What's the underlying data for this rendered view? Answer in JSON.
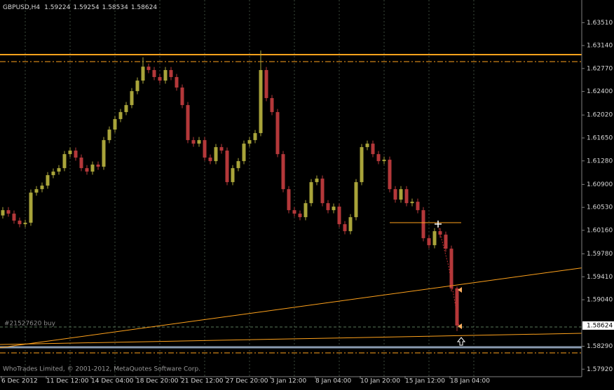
{
  "chart_data": {
    "type": "candlestick",
    "title": "GBPUSD,H4",
    "copyright": "WhoTrades Limited, © 2001-2012, MetaQuotes Software Corp.",
    "categories": [
      "6 Dec 2012",
      null,
      null,
      null,
      null,
      null,
      null,
      null,
      "11 Dec 12:00",
      null,
      null,
      null,
      null,
      null,
      null,
      null,
      "14 Dec 04:00",
      null,
      null,
      null,
      null,
      null,
      null,
      null,
      "18 Dec 20:00",
      null,
      null,
      null,
      null,
      null,
      null,
      null,
      "21 Dec 12:00",
      null,
      null,
      null,
      null,
      null,
      null,
      null,
      "27 Dec 20:00",
      null,
      null,
      null,
      null,
      null,
      null,
      null,
      "3 Jan 12:00",
      null,
      null,
      null,
      null,
      null,
      null,
      null,
      "8 Jan 04:00",
      null,
      null,
      null,
      null,
      null,
      null,
      null,
      "10 Jan 20:00",
      null,
      null,
      null,
      null,
      null,
      null,
      null,
      "15 Jan 12:00",
      null,
      null,
      null,
      null,
      null,
      null,
      null,
      "18 Jan 04:00",
      null
    ],
    "open": [
      1.604,
      1.60485,
      1.60429,
      1.60316,
      1.60259,
      1.60282,
      1.60768,
      1.60824,
      1.60881,
      1.6105,
      1.61107,
      1.61163,
      1.61389,
      1.61446,
      1.61333,
      1.61163,
      1.61107,
      1.6122,
      1.61186,
      1.61615,
      1.61785,
      1.61954,
      1.62067,
      1.6218,
      1.62405,
      1.62575,
      1.628,
      1.62745,
      1.62632,
      1.62575,
      1.62745,
      1.62632,
      1.62463,
      1.6218,
      1.61615,
      1.61558,
      1.61615,
      1.61333,
      1.61276,
      1.61502,
      1.61446,
      1.60937,
      1.61163,
      1.61276,
      1.61558,
      1.61615,
      1.61728,
      1.62745,
      1.62293,
      1.62067,
      1.61389,
      1.60824,
      1.60485,
      1.60429,
      1.60372,
      1.60598,
      1.60937,
      1.60994,
      1.60598,
      1.60485,
      1.60542,
      1.60259,
      1.60146,
      1.60372,
      1.60937,
      1.61502,
      1.61558,
      1.61389,
      1.61276,
      1.61299,
      1.60824,
      1.60655,
      1.60824,
      1.60598,
      1.60621,
      1.60485,
      1.60033,
      1.5992,
      1.60146,
      1.6009,
      1.59864,
      1.59224
    ],
    "high": [
      1.60535,
      1.60535,
      1.60479,
      1.60366,
      1.60332,
      1.60818,
      1.60874,
      1.60931,
      1.611,
      1.61157,
      1.61213,
      1.61439,
      1.61496,
      1.61496,
      1.61383,
      1.61213,
      1.6127,
      1.6127,
      1.61665,
      1.61835,
      1.62004,
      1.62117,
      1.6223,
      1.62455,
      1.62625,
      1.6295,
      1.6285,
      1.62795,
      1.62682,
      1.62795,
      1.62795,
      1.62682,
      1.62513,
      1.6223,
      1.61665,
      1.61665,
      1.61665,
      1.61383,
      1.61552,
      1.61552,
      1.61496,
      1.61213,
      1.61326,
      1.61608,
      1.61665,
      1.61778,
      1.63061,
      1.62795,
      1.62343,
      1.62117,
      1.61439,
      1.60874,
      1.60535,
      1.60479,
      1.60648,
      1.60987,
      1.61044,
      1.61044,
      1.60648,
      1.60592,
      1.60592,
      1.60309,
      1.60422,
      1.60987,
      1.61552,
      1.61608,
      1.61608,
      1.61439,
      1.61349,
      1.61349,
      1.60874,
      1.60874,
      1.60874,
      1.60671,
      1.60671,
      1.60535,
      1.60083,
      1.60196,
      1.60196,
      1.6014,
      1.59914,
      1.59254
    ],
    "low": [
      1.6035,
      1.60379,
      1.60266,
      1.60209,
      1.60209,
      1.60232,
      1.60718,
      1.60774,
      1.60831,
      1.61,
      1.61057,
      1.61113,
      1.61339,
      1.61283,
      1.61113,
      1.61057,
      1.61057,
      1.61136,
      1.61136,
      1.61565,
      1.61735,
      1.61904,
      1.62017,
      1.6213,
      1.62355,
      1.62525,
      1.62695,
      1.62582,
      1.62525,
      1.62525,
      1.62582,
      1.62413,
      1.6213,
      1.61565,
      1.61508,
      1.61508,
      1.61283,
      1.61226,
      1.61226,
      1.61396,
      1.60887,
      1.60887,
      1.61113,
      1.61226,
      1.61508,
      1.61565,
      1.61678,
      1.62243,
      1.62017,
      1.61339,
      1.60774,
      1.60435,
      1.60379,
      1.60322,
      1.60322,
      1.60548,
      1.60887,
      1.60548,
      1.60435,
      1.60435,
      1.60209,
      1.60096,
      1.60096,
      1.60322,
      1.60887,
      1.61452,
      1.61339,
      1.61226,
      1.61226,
      1.60774,
      1.60605,
      1.60605,
      1.60548,
      1.60548,
      1.60435,
      1.59983,
      1.5987,
      1.5987,
      1.6004,
      1.59814,
      1.59174,
      1.58534
    ],
    "close": [
      1.60485,
      1.60429,
      1.60316,
      1.60259,
      1.60282,
      1.60768,
      1.60824,
      1.60881,
      1.6105,
      1.61107,
      1.61163,
      1.61389,
      1.61446,
      1.61333,
      1.61163,
      1.61107,
      1.6122,
      1.61186,
      1.61615,
      1.61785,
      1.61954,
      1.62067,
      1.6218,
      1.62405,
      1.62575,
      1.628,
      1.62745,
      1.62632,
      1.62575,
      1.62745,
      1.62632,
      1.62463,
      1.6218,
      1.61615,
      1.61558,
      1.61615,
      1.61333,
      1.61276,
      1.61502,
      1.61446,
      1.60937,
      1.61163,
      1.61276,
      1.61558,
      1.61615,
      1.61728,
      1.62745,
      1.62293,
      1.62067,
      1.61389,
      1.60824,
      1.60485,
      1.60429,
      1.60372,
      1.60598,
      1.60937,
      1.60994,
      1.60598,
      1.60485,
      1.60542,
      1.60259,
      1.60146,
      1.60372,
      1.60937,
      1.61502,
      1.61558,
      1.61389,
      1.61276,
      1.61299,
      1.60824,
      1.60655,
      1.60824,
      1.60598,
      1.60621,
      1.60485,
      1.60033,
      1.5992,
      1.60146,
      1.6009,
      1.59864,
      1.59224,
      1.58624
    ],
    "up_color": "#a9a43a",
    "down_color": "#b4383a",
    "ylim": [
      1.5781,
      1.63875
    ],
    "yticks": [
      {
        "value": 1.6351,
        "label": "1.63510"
      },
      {
        "value": 1.6314,
        "label": "1.63140"
      },
      {
        "value": 1.6277,
        "label": "1.62770"
      },
      {
        "value": 1.624,
        "label": "1.62400"
      },
      {
        "value": 1.6202,
        "label": "1.62020"
      },
      {
        "value": 1.6165,
        "label": "1.61650"
      },
      {
        "value": 1.6128,
        "label": "1.61280"
      },
      {
        "value": 1.609,
        "label": "1.60900"
      },
      {
        "value": 1.6053,
        "label": "1.60530"
      },
      {
        "value": 1.6016,
        "label": "1.60160"
      },
      {
        "value": 1.5978,
        "label": "1.59780"
      },
      {
        "value": 1.5941,
        "label": "1.59410"
      },
      {
        "value": 1.5904,
        "label": "1.59040"
      },
      {
        "value": 1.5829,
        "label": "1.58290"
      },
      {
        "value": 1.5792,
        "label": "1.57920"
      }
    ],
    "grid": "vertical",
    "levels": [
      {
        "value": 1.62994,
        "color": "#ffa21c",
        "style": "solid"
      },
      {
        "value": 1.62881,
        "color": "#ffa21c",
        "style": "dashdot"
      },
      {
        "value": 1.58273,
        "color": "#8a9bb0",
        "style": "thick"
      },
      {
        "value": 1.58183,
        "color": "#ffa21c",
        "style": "dashdot"
      }
    ],
    "trendlines": [
      {
        "x": [
          0,
          81
        ],
        "y": [
          1.58273,
          1.59278
        ],
        "color": "#ffa21c"
      },
      {
        "x": [
          0,
          81
        ],
        "y": [
          1.58319,
          1.5846
        ],
        "color": "#ffa21c"
      },
      {
        "x": [
          69,
          81
        ],
        "y": [
          1.60284,
          1.60284
        ],
        "color": "#ffa21c"
      }
    ],
    "order": {
      "label": "#21527620 buy",
      "value": 1.586
    }
  }
}
